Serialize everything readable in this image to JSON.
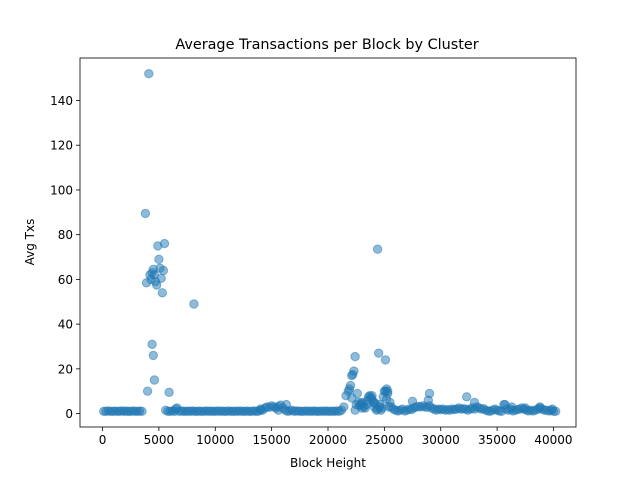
{
  "chart_data": {
    "type": "scatter",
    "title": "Average Transactions per Block by Cluster",
    "xlabel": "Block Height",
    "ylabel": "Avg Txs",
    "xlim": [
      -2000,
      42000
    ],
    "ylim": [
      -6,
      159
    ],
    "xticks": [
      0,
      5000,
      10000,
      15000,
      20000,
      25000,
      30000,
      35000,
      40000
    ],
    "yticks": [
      0,
      20,
      40,
      60,
      80,
      100,
      120,
      140
    ],
    "grid": false,
    "marker_color": "#1f77b4",
    "marker_alpha": 0.5,
    "series": [
      {
        "x": [
          100,
          300,
          500,
          700,
          900,
          1100,
          1300,
          1500,
          1700,
          1900,
          2100,
          2300,
          2500,
          2700,
          2900,
          3100,
          3300,
          3500,
          3800,
          3900,
          4100,
          4300,
          4400,
          4500,
          4600,
          4700,
          4800,
          4900,
          5000,
          5100,
          5200,
          5300,
          5400,
          5500,
          5600,
          4000,
          4200,
          4500,
          4400,
          4600,
          5900,
          5800,
          6000,
          6200,
          6400,
          6600,
          6800,
          7000,
          7200,
          7400,
          7600,
          7800,
          8000,
          8200,
          8400,
          8600,
          8800,
          9000,
          9200,
          9400,
          9600,
          9800,
          10000,
          10200,
          10400,
          10600,
          10800,
          11000,
          11200,
          11400,
          11600,
          11800,
          12000,
          12200,
          12400,
          12600,
          12800,
          13000,
          13200,
          13400,
          13600,
          13800,
          14000,
          14200,
          14400,
          14600,
          14800,
          15000,
          15200,
          15400,
          15600,
          15800,
          16000,
          16200,
          16400,
          16600,
          16800,
          17000,
          17200,
          17400,
          17600,
          17800,
          18000,
          18200,
          18400,
          18600,
          18800,
          19000,
          19200,
          19400,
          19600,
          19800,
          20000,
          20200,
          20400,
          20600,
          20800,
          21000,
          21200,
          21400,
          8100,
          6500,
          14000,
          15600,
          16300,
          21600,
          21800,
          22000,
          22100,
          22200,
          22300,
          22400,
          22500,
          22600,
          22700,
          22800,
          22900,
          23000,
          23100,
          23200,
          23300,
          23400,
          23500,
          23600,
          23700,
          23800,
          23900,
          24000,
          24100,
          24200,
          24300,
          24400,
          24500,
          24600,
          24700,
          24800,
          24900,
          25000,
          25100,
          25200,
          25300,
          25400,
          25500,
          25600,
          24400,
          24600,
          25100,
          25200,
          25300,
          23900,
          24100,
          21900,
          22100,
          22400,
          23000,
          25800,
          26000,
          26200,
          26400,
          26600,
          26800,
          27000,
          27200,
          27400,
          27600,
          27800,
          28000,
          28200,
          28400,
          28600,
          28800,
          29000,
          29200,
          29400,
          29600,
          29800,
          30000,
          30200,
          30400,
          30600,
          30800,
          31000,
          31200,
          31400,
          31600,
          31800,
          32000,
          32200,
          32400,
          32600,
          32800,
          33000,
          33200,
          33400,
          33600,
          33800,
          34000,
          34200,
          34400,
          34600,
          34800,
          35000,
          35200,
          35400,
          35600,
          35800,
          36000,
          36200,
          36400,
          36600,
          36800,
          37000,
          37200,
          37400,
          37600,
          37800,
          38000,
          38200,
          38400,
          38600,
          38800,
          39000,
          39200,
          39400,
          39600,
          39800,
          40000,
          40200,
          27500,
          28900,
          29000,
          32300,
          33000,
          35700,
          36300,
          37500,
          38800,
          39900
        ],
        "y": [
          1,
          1,
          1.2,
          1,
          1,
          1.1,
          1,
          1,
          1.2,
          1,
          1.1,
          1,
          1,
          1.2,
          1,
          1,
          1.1,
          1,
          89.5,
          58.5,
          152,
          60,
          63,
          64.5,
          62,
          59,
          57.5,
          75,
          69,
          65,
          60.5,
          54,
          64,
          76,
          1.5,
          10,
          62,
          26,
          31,
          15,
          9.5,
          1,
          1,
          1.2,
          1,
          2.5,
          1,
          1.2,
          1,
          1,
          1.1,
          1,
          1.2,
          1,
          1,
          1.1,
          1,
          1,
          1.2,
          1,
          1.1,
          1,
          1,
          1.2,
          1,
          1.1,
          1,
          1,
          1.2,
          1,
          1,
          1.1,
          1,
          1.2,
          1,
          1,
          1.1,
          1,
          1,
          1.2,
          1,
          1,
          2,
          1.5,
          2.5,
          3,
          2.8,
          3.5,
          3,
          2.5,
          3.2,
          3.8,
          2.5,
          1.5,
          1,
          1.2,
          1.5,
          1,
          1.2,
          1.1,
          1,
          1,
          1.2,
          1,
          1.1,
          1,
          1.2,
          1,
          1,
          1.1,
          1,
          1.2,
          1,
          1,
          1.1,
          1,
          1.2,
          1,
          1.5,
          3,
          49,
          2,
          1.5,
          1.5,
          4,
          8,
          10,
          12.5,
          17,
          17.5,
          19,
          25.5,
          4,
          9,
          5,
          3.5,
          4,
          5,
          4.5,
          3,
          2.5,
          4,
          6,
          7.5,
          8,
          7,
          6.5,
          5,
          3,
          4.5,
          1.5,
          73.5,
          27,
          3,
          1.5,
          2.5,
          7.5,
          10,
          10,
          11,
          9,
          3,
          5,
          3,
          2,
          4,
          24,
          6.5,
          10,
          8,
          5,
          11,
          7,
          1.5,
          2.5,
          2,
          1.5,
          1.2,
          1.5,
          2,
          1.2,
          1.5,
          2,
          1.8,
          2.5,
          3,
          3.2,
          3,
          3.5,
          3,
          2.8,
          3.5,
          2.5,
          2,
          1.5,
          2,
          1.8,
          2,
          1.5,
          1.8,
          1.5,
          2,
          1.8,
          2,
          2.5,
          2,
          2.2,
          2,
          1.5,
          2,
          2.5,
          2,
          3,
          2.5,
          2,
          2.2,
          1.5,
          1.2,
          1,
          1.5,
          2,
          1.5,
          1.2,
          1,
          4,
          2,
          1.5,
          2,
          1.2,
          1.5,
          1.8,
          2,
          2.5,
          2,
          1.5,
          1.2,
          1.5,
          1.2,
          1.5,
          2,
          2.5,
          2,
          1.5,
          1.5,
          1.2,
          1.5,
          1,
          1,
          5.5,
          6,
          9,
          7.5,
          5,
          4,
          3,
          2.5,
          3,
          2
        ]
      }
    ]
  }
}
